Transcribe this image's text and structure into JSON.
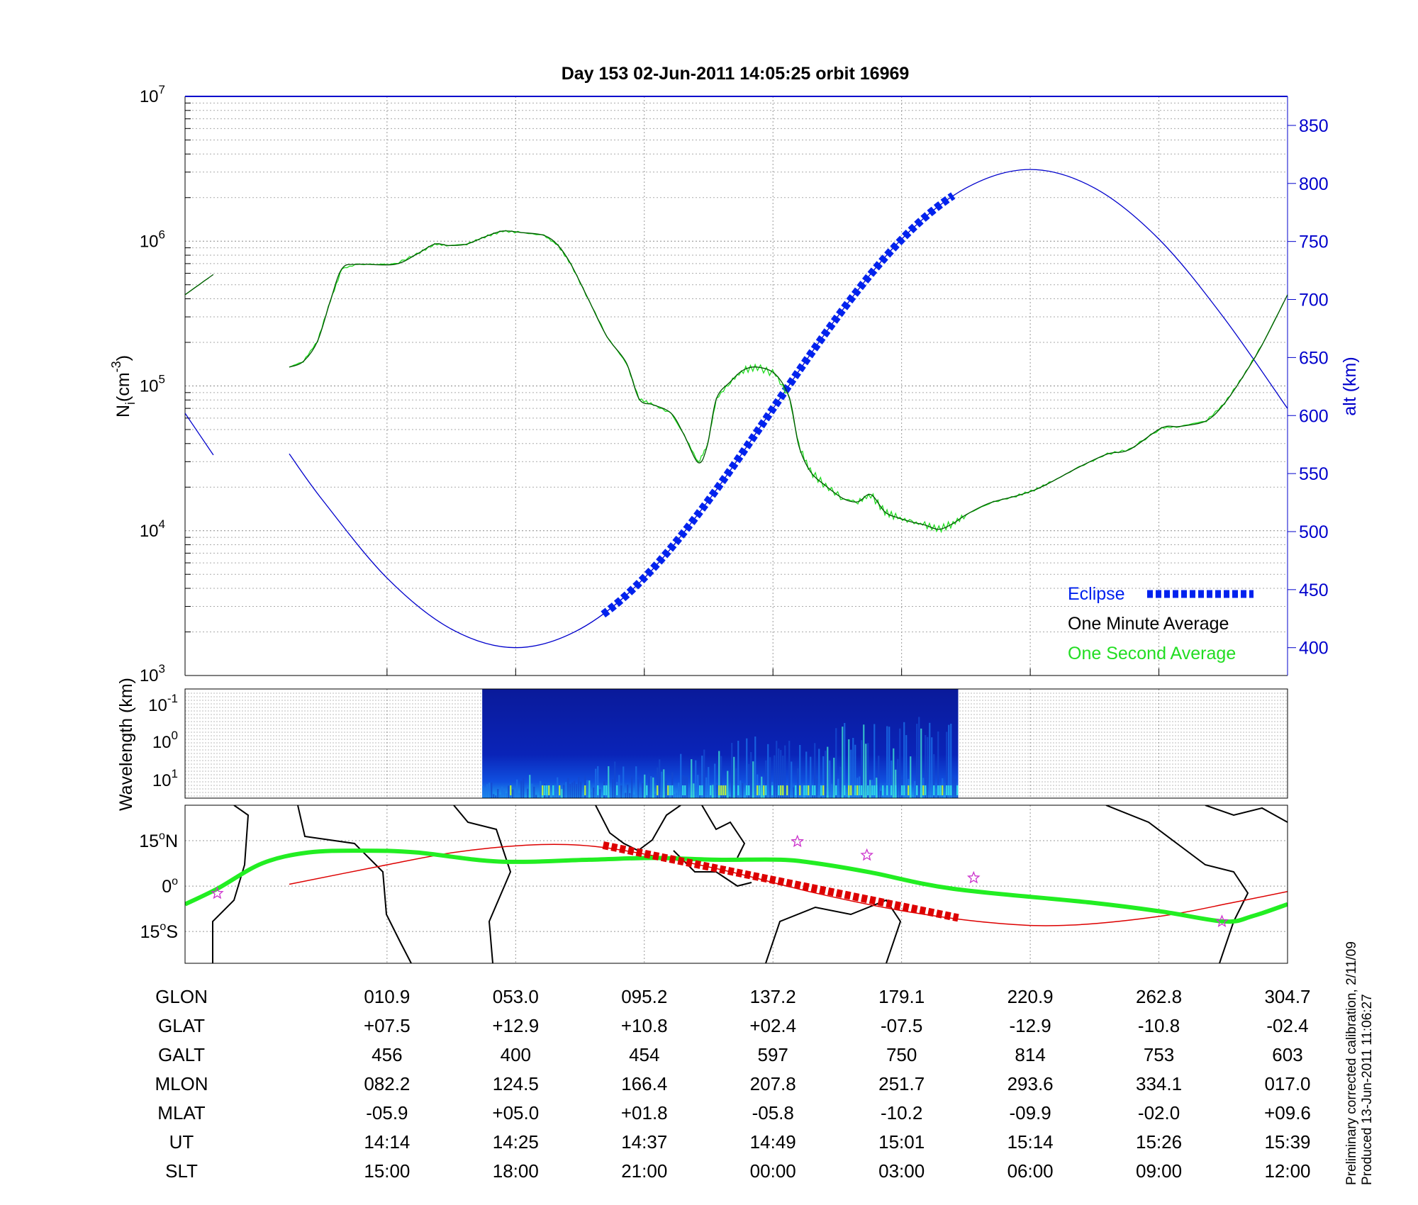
{
  "title": "Day 153  02-Jun-2011 14:05:25   orbit 16969",
  "side_note": [
    "Preliminary corrected calibration, 2/11/09",
    "Produced 13-Jun-2011 11:06:27"
  ],
  "colors": {
    "alt": "#0000cc",
    "eclipse": "#0022ee",
    "minute": "#005500",
    "second": "#22dd22",
    "track": "#22ee22",
    "mag_equator": "#dd0000",
    "stars": "#cc33cc"
  },
  "chart_data": [
    {
      "type": "line",
      "name": "density-altitude",
      "x_unit": "table column index (0 = first tabulated column)",
      "xlim": [
        -1.57,
        7.0
      ],
      "xticks": [
        0,
        1,
        2,
        3,
        4,
        5,
        6,
        7
      ],
      "ylabel": "N",
      "ylabel_sub": "i",
      "ylabel_unit": "(cm",
      "ylabel_exp": "-3",
      "ylabel_close": ")",
      "ylim_log10": [
        3,
        7
      ],
      "yticks": [
        {
          "base": "10",
          "exp": "3"
        },
        {
          "base": "10",
          "exp": "4"
        },
        {
          "base": "10",
          "exp": "5"
        },
        {
          "base": "10",
          "exp": "6"
        },
        {
          "base": "10",
          "exp": "7"
        }
      ],
      "y2label": "alt (km)",
      "y2lim": [
        376,
        875
      ],
      "y2ticks": [
        "400",
        "450",
        "500",
        "550",
        "600",
        "650",
        "700",
        "750",
        "800",
        "850"
      ],
      "series": [
        {
          "name": "One Minute Average",
          "segments": [
            [
              [
                -1.57,
                5.63
              ],
              [
                -1.35,
                5.77
              ]
            ],
            [
              [
                -0.76,
                5.13
              ],
              [
                -0.65,
                5.17
              ],
              [
                -0.54,
                5.31
              ],
              [
                -0.44,
                5.59
              ],
              [
                -0.35,
                5.81
              ],
              [
                -0.23,
                5.84
              ],
              [
                0.06,
                5.84
              ],
              [
                0.23,
                5.91
              ],
              [
                0.37,
                5.98
              ],
              [
                0.48,
                5.97
              ],
              [
                0.62,
                5.98
              ],
              [
                0.76,
                6.03
              ],
              [
                0.9,
                6.07
              ],
              [
                1.04,
                6.06
              ],
              [
                1.22,
                6.04
              ],
              [
                1.33,
                5.97
              ],
              [
                1.43,
                5.84
              ],
              [
                1.57,
                5.59
              ],
              [
                1.71,
                5.34
              ],
              [
                1.86,
                5.16
              ],
              [
                1.96,
                4.91
              ],
              [
                2.07,
                4.87
              ],
              [
                2.21,
                4.81
              ],
              [
                2.31,
                4.66
              ],
              [
                2.42,
                4.47
              ],
              [
                2.49,
                4.59
              ],
              [
                2.56,
                4.91
              ],
              [
                2.67,
                5.03
              ],
              [
                2.77,
                5.11
              ],
              [
                2.88,
                5.13
              ],
              [
                3.02,
                5.08
              ],
              [
                3.13,
                4.91
              ],
              [
                3.2,
                4.59
              ],
              [
                3.29,
                4.41
              ],
              [
                3.41,
                4.31
              ],
              [
                3.55,
                4.22
              ],
              [
                3.66,
                4.2
              ],
              [
                3.76,
                4.25
              ],
              [
                3.87,
                4.13
              ],
              [
                3.97,
                4.09
              ],
              [
                4.08,
                4.06
              ],
              [
                4.18,
                4.04
              ],
              [
                4.29,
                4.01
              ],
              [
                4.4,
                4.05
              ],
              [
                4.5,
                4.11
              ],
              [
                4.68,
                4.19
              ],
              [
                4.89,
                4.24
              ],
              [
                5.03,
                4.28
              ],
              [
                5.17,
                4.34
              ],
              [
                5.38,
                4.44
              ],
              [
                5.6,
                4.53
              ],
              [
                5.77,
                4.56
              ],
              [
                6.02,
                4.71
              ],
              [
                6.16,
                4.72
              ],
              [
                6.37,
                4.76
              ],
              [
                6.51,
                4.88
              ],
              [
                6.65,
                5.06
              ],
              [
                6.8,
                5.28
              ],
              [
                7.0,
                5.63
              ]
            ]
          ]
        },
        {
          "name": "altitude",
          "axis": "right",
          "segments": [
            [
              [
                -1.57,
                602
              ],
              [
                -1.35,
                566
              ]
            ],
            [
              [
                -0.76,
                567
              ],
              [
                -0.5,
                527
              ],
              [
                0,
                460
              ],
              [
                0.5,
                416
              ],
              [
                1,
                400
              ],
              [
                1.5,
                416
              ],
              [
                2,
                460
              ],
              [
                2.5,
                527
              ],
              [
                3,
                606
              ],
              [
                3.5,
                685
              ],
              [
                4,
                752
              ],
              [
                4.5,
                796
              ],
              [
                5,
                812
              ],
              [
                5.5,
                796
              ],
              [
                6,
                752
              ],
              [
                6.5,
                685
              ],
              [
                7,
                606
              ]
            ]
          ]
        }
      ],
      "eclipse_range": [
        1.68,
        4.4
      ],
      "legend": {
        "placement": "bottom-right",
        "entries": [
          {
            "label": "Eclipse",
            "color": "#0022ee"
          },
          {
            "label": "One Minute Average",
            "color": "#000000"
          },
          {
            "label": "One Second Average",
            "color": "#22dd22"
          }
        ]
      }
    },
    {
      "type": "heatmap",
      "name": "spectrogram",
      "ylabel": "Wavelength (km)",
      "yticks": [
        {
          "base": "10",
          "exp": "-1"
        },
        {
          "base": "10",
          "exp": "0"
        },
        {
          "base": "10",
          "exp": "1"
        }
      ],
      "data_range": [
        0.74,
        4.44
      ]
    },
    {
      "type": "line",
      "name": "ground-track",
      "ylim": [
        -25.5,
        26.7
      ],
      "yticks": [
        {
          "deg": "15",
          "hemi": "N",
          "v": 15
        },
        {
          "deg": "0",
          "hemi": "",
          "v": 0
        },
        {
          "deg": "15",
          "hemi": "S",
          "v": -15
        }
      ],
      "track": [
        [
          -1.57,
          -6.0
        ],
        [
          -1.32,
          -0.9
        ],
        [
          -0.97,
          7.5
        ],
        [
          -0.61,
          11.1
        ],
        [
          -0.19,
          11.7
        ],
        [
          0.23,
          11.1
        ],
        [
          0.87,
          8.1
        ],
        [
          1.57,
          8.7
        ],
        [
          2.07,
          9.3
        ],
        [
          2.56,
          8.7
        ],
        [
          3.06,
          8.7
        ],
        [
          3.34,
          7.5
        ],
        [
          3.76,
          4.5
        ],
        [
          4.4,
          -0.9
        ],
        [
          5.46,
          -5.4
        ],
        [
          6.02,
          -8.4
        ],
        [
          6.51,
          -11.7
        ],
        [
          6.73,
          -9.9
        ],
        [
          7.0,
          -6.0
        ]
      ],
      "mag_equator": [
        [
          -0.76,
          0.6
        ],
        [
          -0.05,
          6.6
        ],
        [
          0.52,
          11.1
        ],
        [
          1.08,
          13.5
        ],
        [
          1.5,
          13.5
        ],
        [
          1.93,
          11.1
        ],
        [
          2.63,
          5.1
        ],
        [
          3.34,
          -2.4
        ],
        [
          4.04,
          -8.4
        ],
        [
          4.75,
          -12.3
        ],
        [
          5.31,
          -12.9
        ],
        [
          6.02,
          -9.9
        ],
        [
          6.58,
          -5.4
        ],
        [
          7.0,
          -1.8
        ]
      ],
      "eclipse_track": [
        [
          1.68,
          13.5
        ],
        [
          4.44,
          -10.5
        ]
      ],
      "stars": [
        [
          -1.32,
          -2.4
        ],
        [
          3.19,
          14.7
        ],
        [
          3.73,
          10.2
        ],
        [
          4.56,
          2.7
        ],
        [
          6.49,
          -11.7
        ]
      ]
    }
  ],
  "table": {
    "rows": [
      {
        "label": "GLON",
        "values": [
          "010.9",
          "053.0",
          "095.2",
          "137.2",
          "179.1",
          "220.9",
          "262.8",
          "304.7"
        ]
      },
      {
        "label": "GLAT",
        "values": [
          "+07.5",
          "+12.9",
          "+10.8",
          "+02.4",
          "-07.5",
          "-12.9",
          "-10.8",
          "-02.4"
        ]
      },
      {
        "label": "GALT",
        "values": [
          "456",
          "400",
          "454",
          "597",
          "750",
          "814",
          "753",
          "603"
        ]
      },
      {
        "label": "MLON",
        "values": [
          "082.2",
          "124.5",
          "166.4",
          "207.8",
          "251.7",
          "293.6",
          "334.1",
          "017.0"
        ]
      },
      {
        "label": "MLAT",
        "values": [
          "-05.9",
          "+05.0",
          "+01.8",
          "-05.8",
          "-10.2",
          "-09.9",
          "-02.0",
          "+09.6"
        ]
      },
      {
        "label": "UT",
        "values": [
          "14:14",
          "14:25",
          "14:37",
          "14:49",
          "15:01",
          "15:14",
          "15:26",
          "15:39"
        ]
      },
      {
        "label": "SLT",
        "values": [
          "15:00",
          "18:00",
          "21:00",
          "00:00",
          "03:00",
          "06:00",
          "09:00",
          "12:00"
        ]
      }
    ]
  }
}
